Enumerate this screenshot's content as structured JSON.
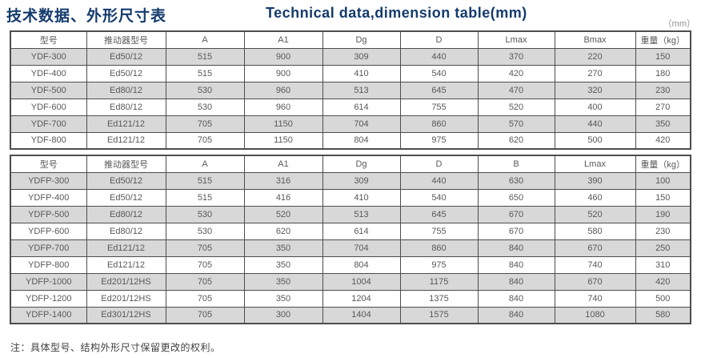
{
  "page": {
    "title_zh": "技术数据、外形尺寸表",
    "title_en": "Technical data,dimension table(mm)",
    "unit_note": "（mm）",
    "footnote": "注：具体型号、结构外形尺寸保留更改的权利。"
  },
  "colors": {
    "title": "#143b6d",
    "row_shade": "#d8d8d8",
    "border": "#4d4d4d",
    "cell_text": "#595959"
  },
  "table1": {
    "headers": [
      "型号",
      "推动器型号",
      "A",
      "A1",
      "Dg",
      "D",
      "Lmax",
      "Bmax",
      "重量（kg）"
    ],
    "rows": [
      [
        "YDF-300",
        "Ed50/12",
        "515",
        "900",
        "309",
        "440",
        "370",
        "220",
        "150"
      ],
      [
        "YDF-400",
        "Ed50/12",
        "515",
        "900",
        "410",
        "540",
        "420",
        "270",
        "180"
      ],
      [
        "YDF-500",
        "Ed80/12",
        "530",
        "960",
        "513",
        "645",
        "470",
        "320",
        "230"
      ],
      [
        "YDF-600",
        "Ed80/12",
        "530",
        "960",
        "614",
        "755",
        "520",
        "400",
        "270"
      ],
      [
        "YDF-700",
        "Ed121/12",
        "705",
        "1150",
        "704",
        "860",
        "570",
        "440",
        "350"
      ],
      [
        "YDF-800",
        "Ed121/12",
        "705",
        "1150",
        "804",
        "975",
        "620",
        "500",
        "420"
      ]
    ]
  },
  "table2": {
    "headers": [
      "型号",
      "推动器型号",
      "A",
      "A1",
      "Dg",
      "D",
      "B",
      "Lmax",
      "重量（kg）"
    ],
    "rows": [
      [
        "YDFP-300",
        "Ed50/12",
        "515",
        "316",
        "309",
        "440",
        "630",
        "390",
        "100"
      ],
      [
        "YDFP-400",
        "Ed50/12",
        "515",
        "416",
        "410",
        "540",
        "650",
        "460",
        "150"
      ],
      [
        "YDFP-500",
        "Ed80/12",
        "530",
        "520",
        "513",
        "645",
        "670",
        "520",
        "190"
      ],
      [
        "YDFP-600",
        "Ed80/12",
        "530",
        "620",
        "614",
        "755",
        "670",
        "580",
        "230"
      ],
      [
        "YDFP-700",
        "Ed121/12",
        "705",
        "350",
        "704",
        "860",
        "840",
        "670",
        "250"
      ],
      [
        "YDFP-800",
        "Ed121/12",
        "705",
        "350",
        "804",
        "975",
        "840",
        "740",
        "310"
      ],
      [
        "YDFP-1000",
        "Ed201/12HS",
        "705",
        "350",
        "1004",
        "1175",
        "840",
        "670",
        "420"
      ],
      [
        "YDFP-1200",
        "Ed201/12HS",
        "705",
        "350",
        "1204",
        "1375",
        "840",
        "740",
        "500"
      ],
      [
        "YDFP-1400",
        "Ed301/12HS",
        "705",
        "300",
        "1404",
        "1575",
        "840",
        "1080",
        "580"
      ]
    ]
  }
}
